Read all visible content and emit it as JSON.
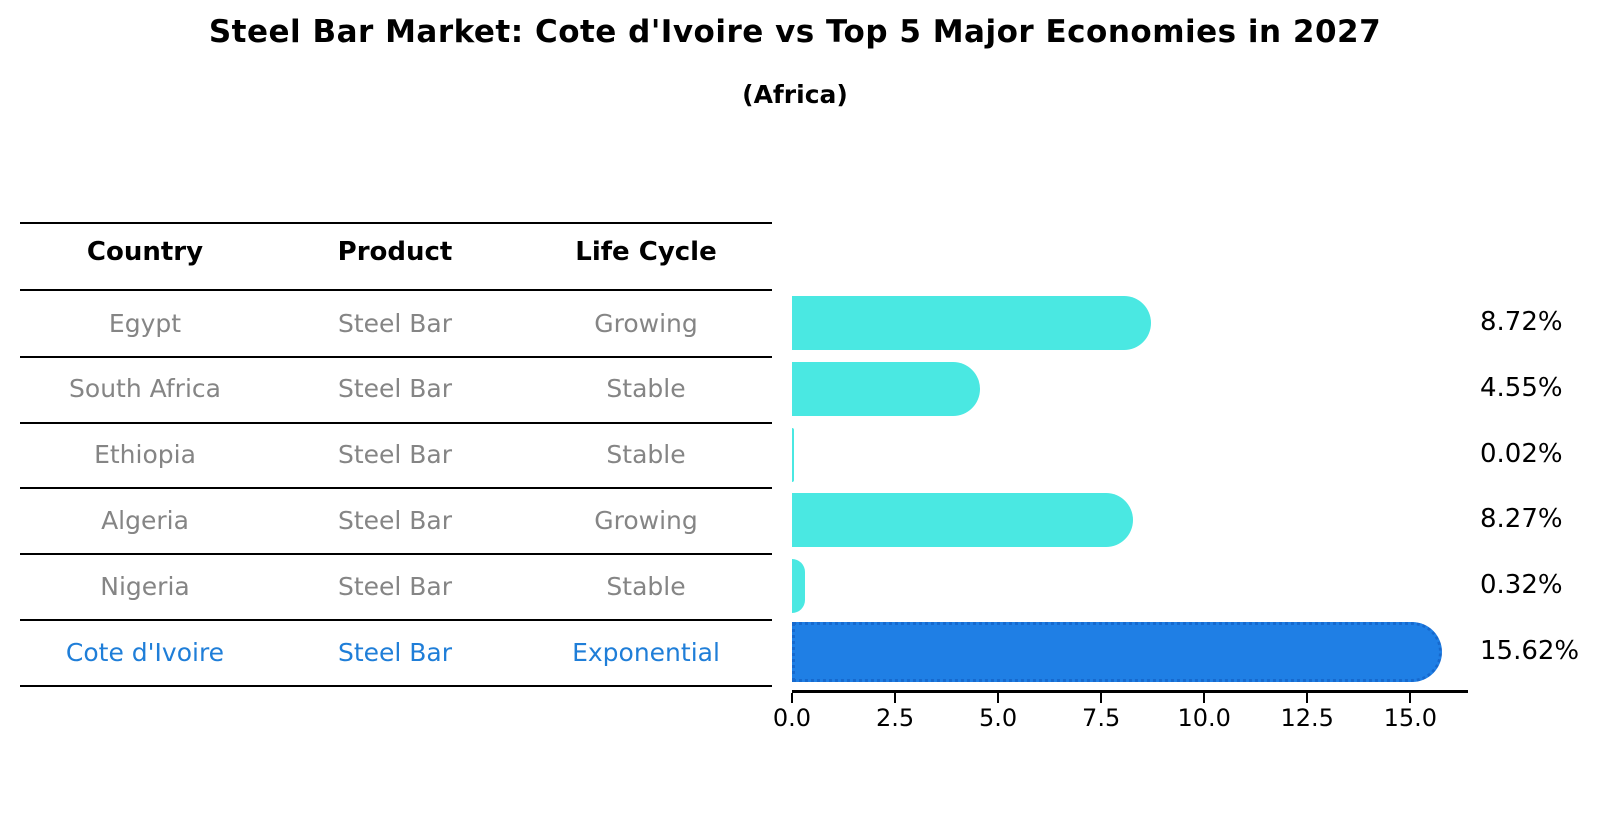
{
  "header": {
    "title": "Steel Bar Market: Cote d'Ivoire vs Top 5 Major Economies in 2027",
    "subtitle": "(Africa)"
  },
  "table": {
    "headers": [
      "Country",
      "Product",
      "Life Cycle"
    ],
    "rows": [
      {
        "country": "Egypt",
        "product": "Steel Bar",
        "life_cycle": "Growing",
        "highlight": false
      },
      {
        "country": "South Africa",
        "product": "Steel Bar",
        "life_cycle": "Stable",
        "highlight": false
      },
      {
        "country": "Ethiopia",
        "product": "Steel Bar",
        "life_cycle": "Stable",
        "highlight": false
      },
      {
        "country": "Algeria",
        "product": "Steel Bar",
        "life_cycle": "Growing",
        "highlight": false
      },
      {
        "country": "Nigeria",
        "product": "Steel Bar",
        "life_cycle": "Stable",
        "highlight": false
      },
      {
        "country": "Cote d'Ivoire",
        "product": "Steel Bar",
        "life_cycle": "Exponential",
        "highlight": true
      }
    ]
  },
  "chart_data": {
    "type": "bar",
    "orientation": "horizontal",
    "title": "Steel Bar Market: Cote d'Ivoire vs Top 5 Major Economies in 2027",
    "subtitle": "(Africa)",
    "categories": [
      "Egypt",
      "South Africa",
      "Ethiopia",
      "Algeria",
      "Nigeria",
      "Cote d'Ivoire"
    ],
    "values": [
      8.72,
      4.55,
      0.02,
      8.27,
      0.32,
      15.62
    ],
    "value_labels": [
      "8.72%",
      "4.55%",
      "0.02%",
      "8.27%",
      "0.32%",
      "15.62%"
    ],
    "highlight_category": "Cote d'Ivoire",
    "xlim": [
      0,
      16.4
    ],
    "xticks": [
      "0.0",
      "2.5",
      "5.0",
      "7.5",
      "10.0",
      "12.5",
      "15.0"
    ],
    "grid": false,
    "legend": false
  },
  "colors": {
    "bar_default": "#4AE8E2",
    "bar_highlight": "#1F7FE5",
    "bar_highlight_border": "#1669CE",
    "highlight_text": "#1F7ED8",
    "cell_text": "#858585",
    "axis": "#000000"
  }
}
